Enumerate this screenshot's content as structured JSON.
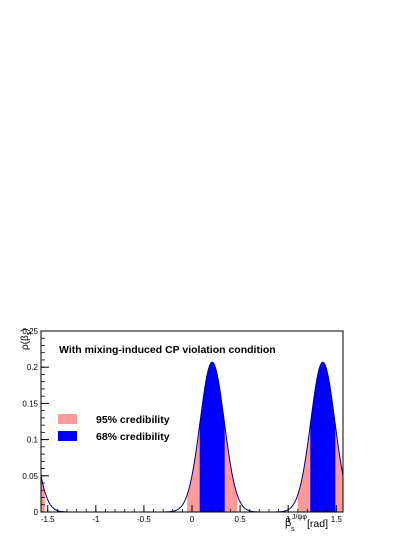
{
  "chart_data": {
    "type": "area",
    "title": "With mixing-induced CP violation condition",
    "ylabel_main": "ρ(β",
    "ylabel_sub": "s",
    "ylabel_close": ")",
    "xlabel_main": "β",
    "xlabel_sub": "s",
    "xlabel_sup": "J/ψφ",
    "xlabel_unit": "[rad]",
    "xlim": [
      -1.57,
      1.57
    ],
    "ylim": [
      0,
      0.25
    ],
    "x_ticks": [
      -1.5,
      -1,
      -0.5,
      0,
      0.5,
      1,
      1.5
    ],
    "x_tick_labels": [
      "-1.5",
      "-1",
      "-0.5",
      "0",
      "0.5",
      "1",
      "1.5"
    ],
    "y_ticks": [
      0,
      0.05,
      0.1,
      0.15,
      0.2,
      0.25
    ],
    "y_tick_labels": [
      "0",
      "0.05",
      "0.1",
      "0.15",
      "0.2",
      "0.25"
    ],
    "peaks": [
      {
        "center": 0.21,
        "height": 0.207,
        "width": 0.125
      },
      {
        "center": 1.36,
        "height": 0.207,
        "width": 0.125
      },
      {
        "center": -1.78,
        "height": 0.207,
        "width": 0.125
      }
    ],
    "regions": [
      {
        "label": "95% credibility",
        "color": "#ff9a9a",
        "intervals": [
          [
            -1.57,
            -1.53
          ],
          [
            -0.05,
            0.47
          ],
          [
            1.1,
            1.57
          ]
        ]
      },
      {
        "label": "68% credibility",
        "color": "#0000ff",
        "intervals": [
          [
            0.08,
            0.34
          ],
          [
            1.23,
            1.49
          ]
        ]
      }
    ],
    "line_color": "#00007f",
    "legend_position": "middle-left",
    "grid": false
  }
}
